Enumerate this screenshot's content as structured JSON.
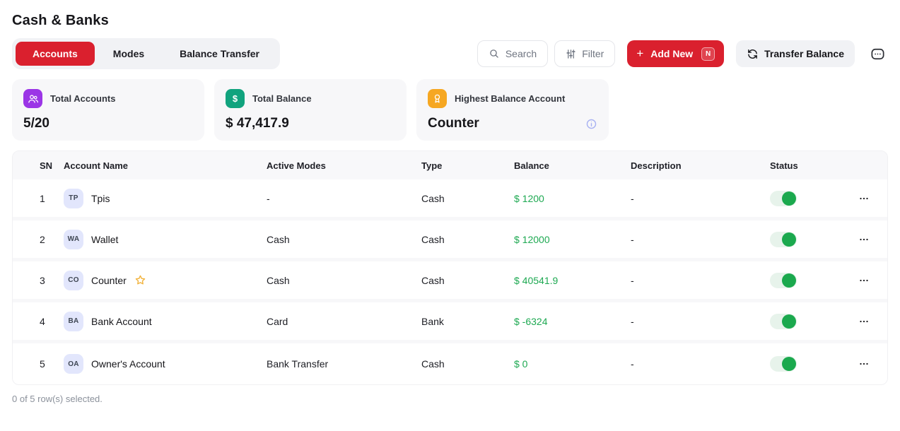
{
  "page": {
    "title": "Cash & Banks"
  },
  "tabs": [
    {
      "label": "Accounts",
      "active": true
    },
    {
      "label": "Modes",
      "active": false
    },
    {
      "label": "Balance Transfer",
      "active": false
    }
  ],
  "toolbar": {
    "search_label": "Search",
    "filter_label": "Filter",
    "add_new_label": "Add New",
    "add_new_shortcut": "N",
    "transfer_balance_label": "Transfer Balance",
    "chat_icon": "chat-dots-icon"
  },
  "summary_cards": [
    {
      "icon": "users-icon",
      "icon_color": "#9B35E6",
      "label": "Total Accounts",
      "value": "5/20"
    },
    {
      "icon": "dollar-icon",
      "icon_color": "#11A37E",
      "label": "Total Balance",
      "value": "$ 47,417.9"
    },
    {
      "icon": "award-icon",
      "icon_color": "#F6A722",
      "label": "Highest Balance Account",
      "value": "Counter",
      "has_info_icon": true
    }
  ],
  "table": {
    "columns": [
      "SN",
      "Account Name",
      "Active Modes",
      "Type",
      "Balance",
      "Description",
      "Status"
    ],
    "rows": [
      {
        "sn": "1",
        "initials": "TP",
        "name": "Tpis",
        "starred": false,
        "active_modes": "-",
        "type": "Cash",
        "balance": "$ 1200",
        "description": "-",
        "status_on": true
      },
      {
        "sn": "2",
        "initials": "WA",
        "name": "Wallet",
        "starred": false,
        "active_modes": "Cash",
        "type": "Cash",
        "balance": "$ 12000",
        "description": "-",
        "status_on": true
      },
      {
        "sn": "3",
        "initials": "CO",
        "name": "Counter",
        "starred": true,
        "active_modes": "Cash",
        "type": "Cash",
        "balance": "$ 40541.9",
        "description": "-",
        "status_on": true
      },
      {
        "sn": "4",
        "initials": "BA",
        "name": "Bank Account",
        "starred": false,
        "active_modes": "Card",
        "type": "Bank",
        "balance": "$ -6324",
        "description": "-",
        "status_on": true
      },
      {
        "sn": "5",
        "initials": "OA",
        "name": "Owner's Account",
        "starred": false,
        "active_modes": "Bank Transfer",
        "type": "Cash",
        "balance": "$ 0",
        "description": "-",
        "status_on": true
      }
    ],
    "footer": "0 of 5 row(s) selected."
  },
  "colors": {
    "accent_red": "#DA202E",
    "balance_green": "#1EA952",
    "toggle_green": "#1BA94E",
    "toggle_track": "#E7F3EB",
    "purple": "#9B35E6",
    "teal": "#11A37E",
    "amber": "#F6A722",
    "info_blue": "#A7B1F2",
    "avatar_bg": "#E2E6FC"
  }
}
